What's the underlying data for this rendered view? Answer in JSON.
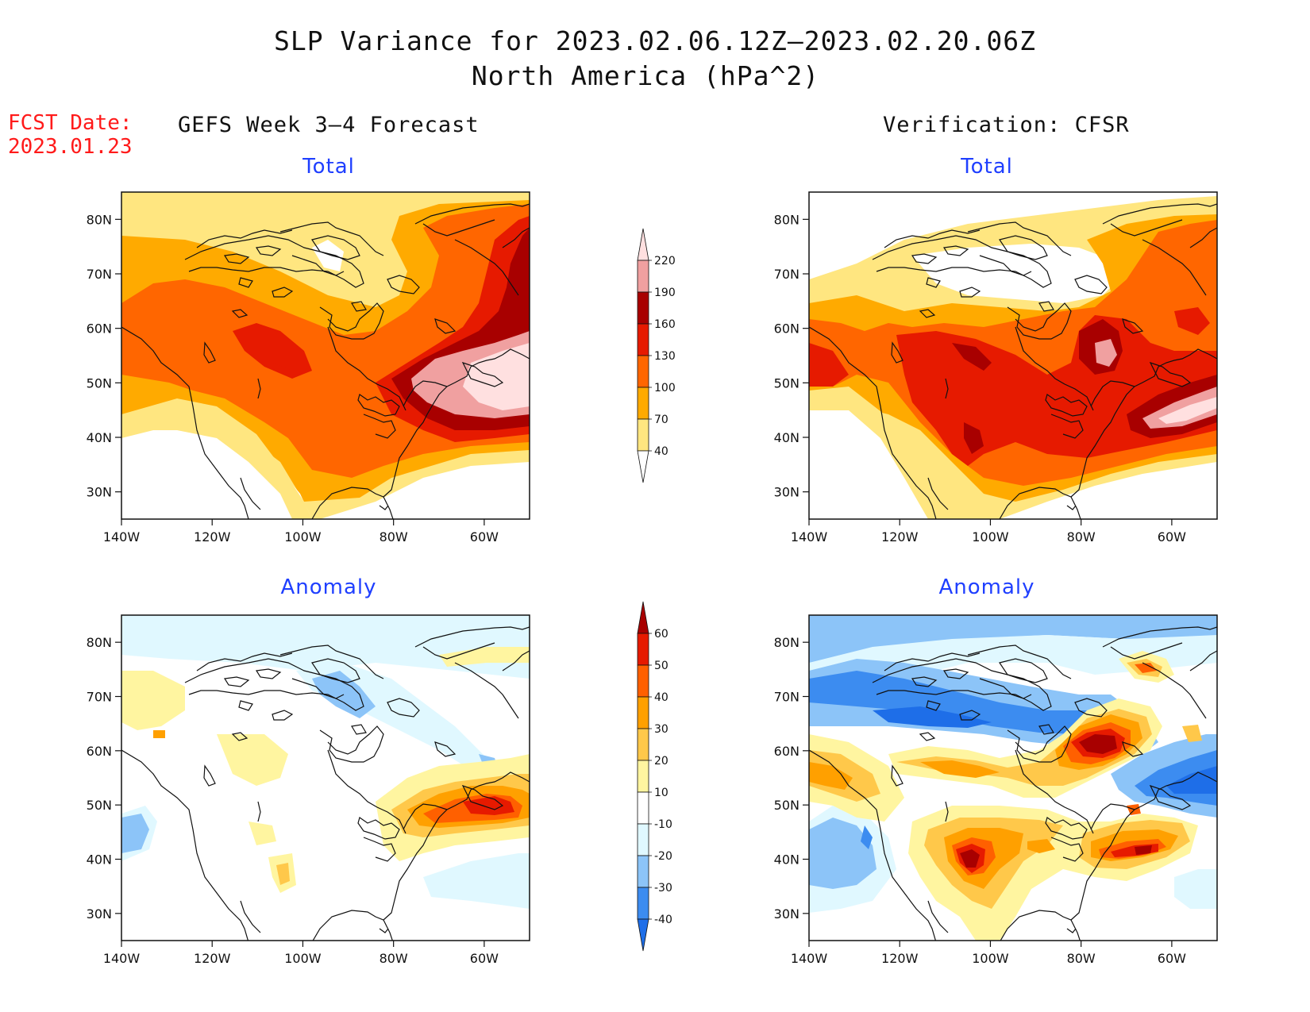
{
  "title": {
    "line1": "SLP Variance for 2023.02.06.12Z–2023.02.20.06Z",
    "line2": "North America (hPa^2)"
  },
  "fcst": {
    "label": "FCST Date:",
    "date": "2023.01.23"
  },
  "columns": {
    "left": "GEFS Week 3–4 Forecast",
    "right": "Verification: CFSR"
  },
  "panels": {
    "top_left": "Total",
    "top_right": "Total",
    "bottom_left": "Anomaly",
    "bottom_right": "Anomaly"
  },
  "axes": {
    "lon_labels": [
      "140W",
      "120W",
      "100W",
      "80W",
      "60W"
    ],
    "lat_labels": [
      "30N",
      "40N",
      "50N",
      "60N",
      "70N",
      "80N"
    ],
    "lon_range": [
      -140,
      -50
    ],
    "lat_range": [
      25,
      85
    ]
  },
  "colorbars": {
    "total": {
      "levels": [
        "40",
        "70",
        "100",
        "130",
        "160",
        "190",
        "220"
      ],
      "colors": [
        "#ffffff",
        "#ffe680",
        "#ffaa00",
        "#ff6600",
        "#e61a00",
        "#a80000",
        "#f0a0a0",
        "#ffe0e0"
      ]
    },
    "anomaly": {
      "levels": [
        "-40",
        "-30",
        "-20",
        "-10",
        "10",
        "20",
        "30",
        "40",
        "50",
        "60"
      ],
      "colors": [
        "#1e6ee8",
        "#3c8cf0",
        "#8cc4f8",
        "#e0f8ff",
        "#ffffff",
        "#fff5a0",
        "#ffc84a",
        "#ffa000",
        "#ff6000",
        "#e61a00",
        "#a80000"
      ]
    }
  }
}
